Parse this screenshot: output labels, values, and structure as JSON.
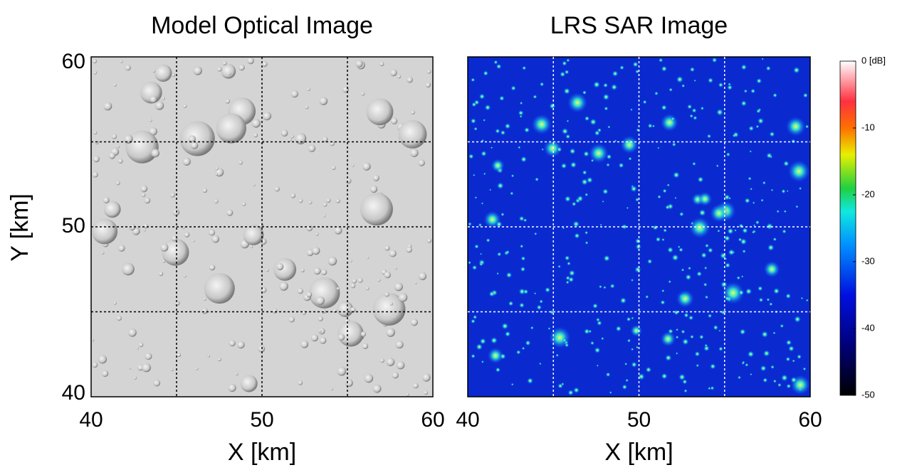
{
  "chart_data": [
    {
      "type": "image",
      "title": "Model  Optical Image",
      "xlabel": "X  [km]",
      "ylabel": "Y  [km]",
      "xlim": [
        40,
        60
      ],
      "ylim": [
        40,
        60
      ],
      "xticks": [
        40,
        50,
        60
      ],
      "yticks": [
        40,
        50,
        60
      ],
      "xgrid": [
        45,
        50,
        55
      ],
      "ygrid": [
        45,
        50,
        55
      ],
      "grid_color": "#000000",
      "style": "optical"
    },
    {
      "type": "image",
      "title": "LRS  SAR Image",
      "xlabel": "X  [km]",
      "xlim": [
        40,
        60
      ],
      "ylim": [
        40,
        60
      ],
      "xticks": [
        40,
        50,
        60
      ],
      "xgrid": [
        45,
        50,
        55
      ],
      "ygrid": [
        45,
        50,
        55
      ],
      "grid_color": "#ffffff",
      "style": "sar",
      "colorbar": {
        "lim": [
          -50,
          0
        ],
        "ticks": [
          {
            "value": 0,
            "label": "0 [dB]"
          },
          -10,
          -20,
          -30,
          -40,
          -50
        ]
      }
    }
  ]
}
